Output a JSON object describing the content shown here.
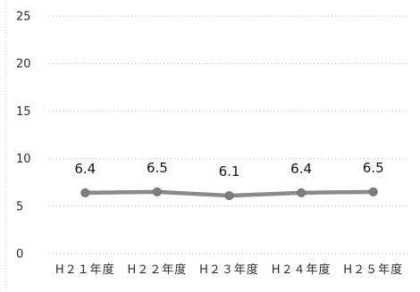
{
  "chart_data": {
    "type": "line",
    "categories": [
      "H２１年度",
      "H２２年度",
      "H２３年度",
      "H２４年度",
      "H２５年度"
    ],
    "series": [
      {
        "name": "",
        "values": [
          6.4,
          6.5,
          6.1,
          6.4,
          6.5
        ]
      }
    ],
    "data_labels": [
      "6.4",
      "6.5",
      "6.1",
      "6.4",
      "6.5"
    ],
    "y_ticks": [
      0,
      5,
      10,
      15,
      20,
      25
    ],
    "ylim": [
      0,
      25
    ],
    "grid": true,
    "legend": "none",
    "title": "",
    "xlabel": "",
    "ylabel": "",
    "colors": {
      "line": "#8a8a8a",
      "marker": "#7f7f7f"
    }
  }
}
